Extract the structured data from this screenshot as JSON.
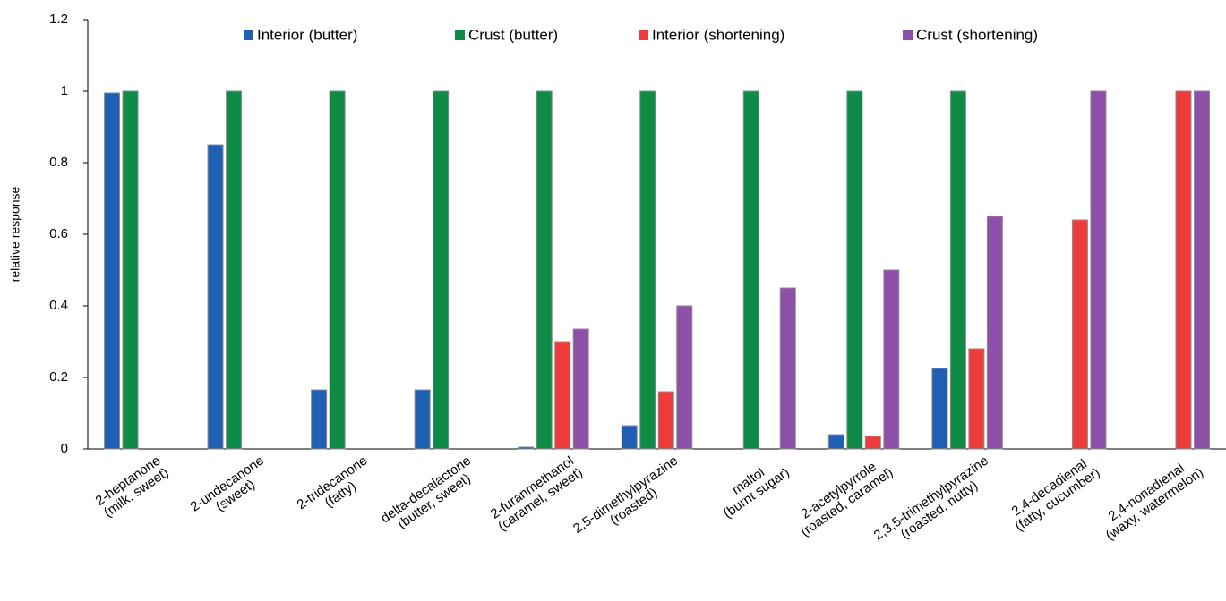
{
  "chart_data": {
    "type": "bar",
    "y_label": "relative response",
    "categories": [
      [
        "2-heptanone",
        "(milk, sweet)"
      ],
      [
        "2-undecanone",
        "(sweet)"
      ],
      [
        "2-tridecanone",
        "(fatty)"
      ],
      [
        "delta-decalactone",
        "(butter, sweet)"
      ],
      [
        "2-furanmethanol",
        "(caramel, sweet)"
      ],
      [
        "2,5-dimethylpyrazine",
        "(roasted)"
      ],
      [
        "maltol",
        "(burnt sugar)"
      ],
      [
        "2-acetylpyrrole",
        "(roasted, caramel)"
      ],
      [
        "2,3,5-trimethylpyrazine",
        "(roasted, nutty)"
      ],
      [
        "2,4-decadienal",
        "(fatty, cucumber)"
      ],
      [
        "2,4-nonadienal",
        "(waxy, watermelon)"
      ]
    ],
    "series": [
      {
        "name": "Interior (butter)",
        "color": "#1f5fb4",
        "values": [
          0.995,
          0.85,
          0.165,
          0.165,
          0.005,
          0.065,
          0,
          0.04,
          0.225,
          0,
          0
        ]
      },
      {
        "name": "Crust (butter)",
        "color": "#0e8c47",
        "values": [
          1,
          1,
          1,
          1,
          1,
          1,
          1,
          1,
          1,
          0,
          0
        ]
      },
      {
        "name": "Interior (shortening)",
        "color": "#ee3b3b",
        "values": [
          0,
          0,
          0,
          0,
          0.3,
          0.16,
          0,
          0.035,
          0.28,
          0.64,
          1
        ]
      },
      {
        "name": "Crust (shortening)",
        "color": "#8e4fa8",
        "values": [
          0,
          0,
          0,
          0,
          0.335,
          0.4,
          0.45,
          0.5,
          0.65,
          1,
          1
        ]
      }
    ],
    "ylim": [
      0,
      1.2
    ],
    "yticks": [
      0,
      0.2,
      0.4,
      0.6,
      0.8,
      1,
      1.2
    ],
    "grid": false
  }
}
